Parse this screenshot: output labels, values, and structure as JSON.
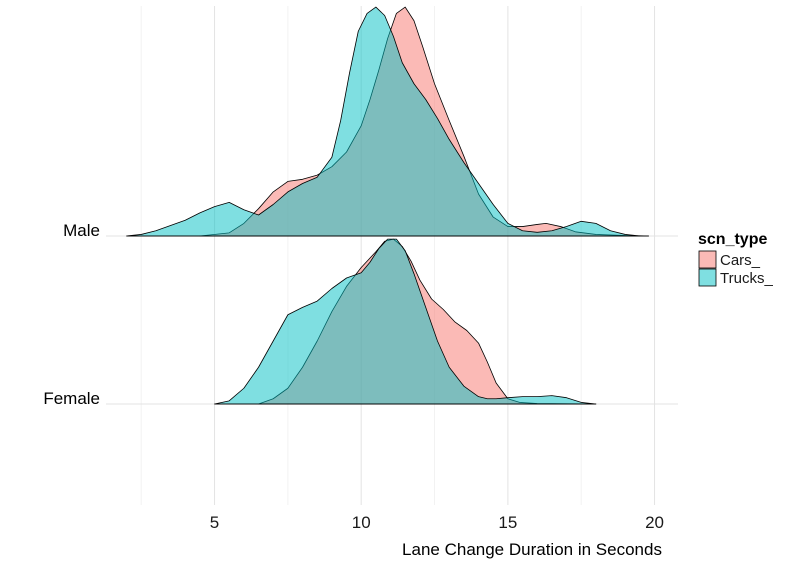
{
  "chart_data": {
    "type": "area",
    "subtype": "ridgeline-density",
    "xlabel": "Lane Change Duration in Seconds",
    "ylabel": "",
    "xlim": [
      1.3,
      20.8
    ],
    "xticks": [
      5,
      10,
      15,
      20
    ],
    "grid": true,
    "legend_title": "scn_type",
    "legend_position": "right",
    "groups": [
      "Male",
      "Female"
    ],
    "series": [
      {
        "name": "Cars_",
        "color": "#F8766D",
        "density": {
          "Male": {
            "x": [
              4.5,
              5.5,
              6.0,
              6.5,
              7.0,
              7.5,
              8.0,
              8.5,
              9.0,
              9.5,
              10.0,
              10.3,
              10.6,
              10.9,
              11.2,
              11.5,
              11.8,
              12.1,
              12.5,
              13.0,
              13.5,
              14.0,
              14.5,
              15.0,
              15.5,
              16.0,
              16.3,
              16.8,
              17.3,
              18.0,
              19.0,
              19.8
            ],
            "y": [
              0.0,
              0.03,
              0.12,
              0.26,
              0.42,
              0.52,
              0.54,
              0.58,
              0.66,
              0.8,
              1.05,
              1.3,
              1.58,
              1.88,
              2.12,
              2.18,
              2.05,
              1.8,
              1.45,
              1.1,
              0.76,
              0.4,
              0.18,
              0.09,
              0.09,
              0.11,
              0.12,
              0.09,
              0.04,
              0.015,
              0.005,
              0.0
            ]
          },
          "Female": {
            "x": [
              6.5,
              7.0,
              7.5,
              8.0,
              8.5,
              9.0,
              9.5,
              10.0,
              10.5,
              10.8,
              11.1,
              11.4,
              11.7,
              12.0,
              12.4,
              12.8,
              13.2,
              13.6,
              14.0,
              14.3,
              14.6,
              15.0,
              15.4,
              16.0,
              17.0,
              18.0
            ],
            "y": [
              0.0,
              0.05,
              0.15,
              0.35,
              0.6,
              0.88,
              1.12,
              1.3,
              1.45,
              1.55,
              1.57,
              1.5,
              1.36,
              1.18,
              1.0,
              0.9,
              0.78,
              0.7,
              0.58,
              0.4,
              0.2,
              0.05,
              0.015,
              0.005,
              0.002,
              0.0
            ]
          }
        }
      },
      {
        "name": "Trucks_",
        "color": "#00BFC4",
        "density": {
          "Male": {
            "x": [
              2.0,
              2.5,
              3.0,
              3.5,
              4.0,
              4.5,
              5.0,
              5.5,
              6.0,
              6.5,
              7.0,
              7.5,
              8.0,
              8.5,
              9.0,
              9.3,
              9.6,
              9.9,
              10.2,
              10.5,
              10.8,
              11.1,
              11.4,
              11.8,
              12.2,
              12.6,
              13.0,
              13.5,
              14.0,
              14.5,
              15.0,
              15.5,
              16.0,
              16.5,
              17.0,
              17.5,
              18.0,
              18.5,
              19.0,
              19.5
            ],
            "y": [
              0.0,
              0.015,
              0.05,
              0.1,
              0.15,
              0.22,
              0.28,
              0.32,
              0.25,
              0.2,
              0.3,
              0.42,
              0.5,
              0.56,
              0.75,
              1.1,
              1.55,
              1.95,
              2.12,
              2.18,
              2.1,
              1.9,
              1.65,
              1.45,
              1.3,
              1.12,
              0.92,
              0.7,
              0.5,
              0.3,
              0.12,
              0.05,
              0.035,
              0.05,
              0.09,
              0.14,
              0.12,
              0.05,
              0.015,
              0.0
            ]
          },
          "Female": {
            "x": [
              5.0,
              5.5,
              6.0,
              6.5,
              7.0,
              7.5,
              8.0,
              8.5,
              9.0,
              9.5,
              10.0,
              10.3,
              10.6,
              10.9,
              11.2,
              11.5,
              11.8,
              12.2,
              12.6,
              13.0,
              13.5,
              14.0,
              14.3,
              14.6,
              15.0,
              15.5,
              16.0,
              16.5,
              17.0,
              17.5,
              18.0
            ],
            "y": [
              0.0,
              0.03,
              0.15,
              0.35,
              0.6,
              0.85,
              0.92,
              0.98,
              1.1,
              1.2,
              1.25,
              1.35,
              1.48,
              1.57,
              1.57,
              1.46,
              1.24,
              0.92,
              0.6,
              0.35,
              0.17,
              0.07,
              0.05,
              0.05,
              0.06,
              0.07,
              0.07,
              0.08,
              0.06,
              0.015,
              0.0
            ]
          }
        }
      }
    ]
  }
}
